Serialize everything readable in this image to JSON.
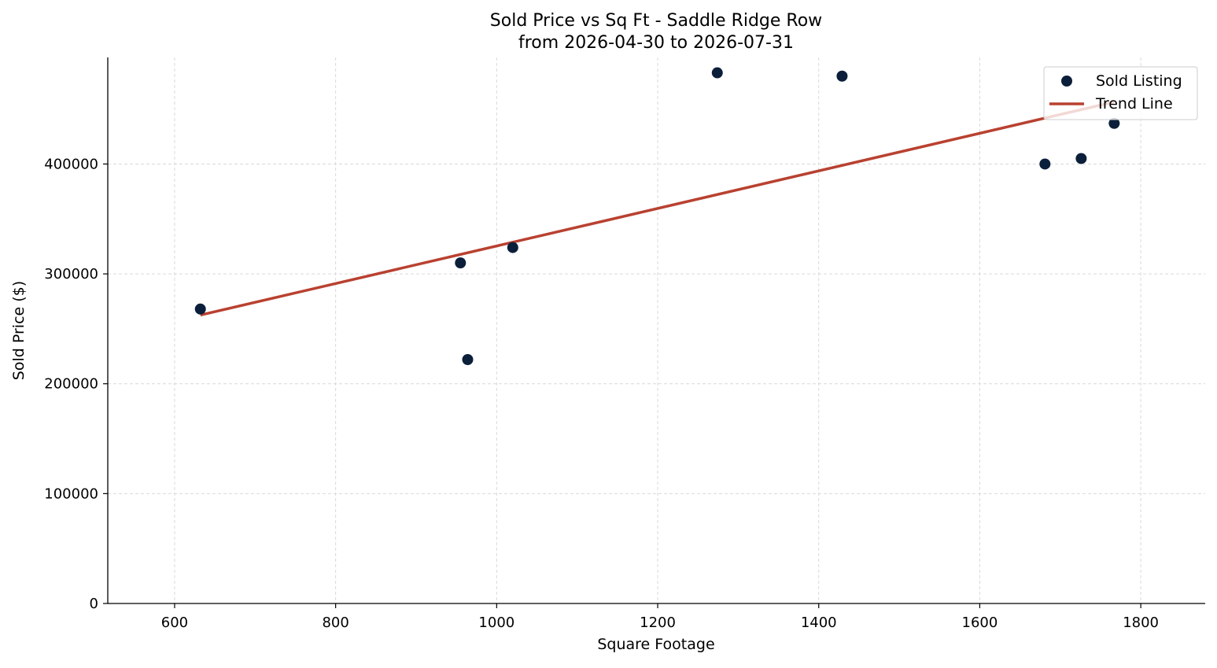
{
  "chart_data": {
    "type": "scatter",
    "title": "Sold Price vs Sq Ft - Saddle Ridge Row",
    "subtitle": "from 2026-04-30 to 2026-07-31",
    "xlabel": "Square Footage",
    "ylabel": "Sold Price ($)",
    "xlim": [
      517,
      1880
    ],
    "ylim": [
      0,
      497000
    ],
    "xticks": [
      600,
      800,
      1000,
      1200,
      1400,
      1600,
      1800
    ],
    "yticks": [
      0,
      100000,
      200000,
      300000,
      400000
    ],
    "grid": true,
    "legend_position": "top-right",
    "series": [
      {
        "name": "Sold Listing",
        "kind": "scatter",
        "color": "#0b1f3a",
        "points": [
          {
            "x": 632,
            "y": 268000
          },
          {
            "x": 955,
            "y": 310000
          },
          {
            "x": 964,
            "y": 222000
          },
          {
            "x": 1020,
            "y": 324000
          },
          {
            "x": 1274,
            "y": 483000
          },
          {
            "x": 1429,
            "y": 480000
          },
          {
            "x": 1681,
            "y": 400000
          },
          {
            "x": 1726,
            "y": 405000
          },
          {
            "x": 1767,
            "y": 437000
          }
        ]
      },
      {
        "name": "Trend Line",
        "kind": "line",
        "color": "#b94130",
        "points": [
          {
            "x": 632,
            "y": 262500
          },
          {
            "x": 1767,
            "y": 456500
          }
        ]
      }
    ]
  }
}
